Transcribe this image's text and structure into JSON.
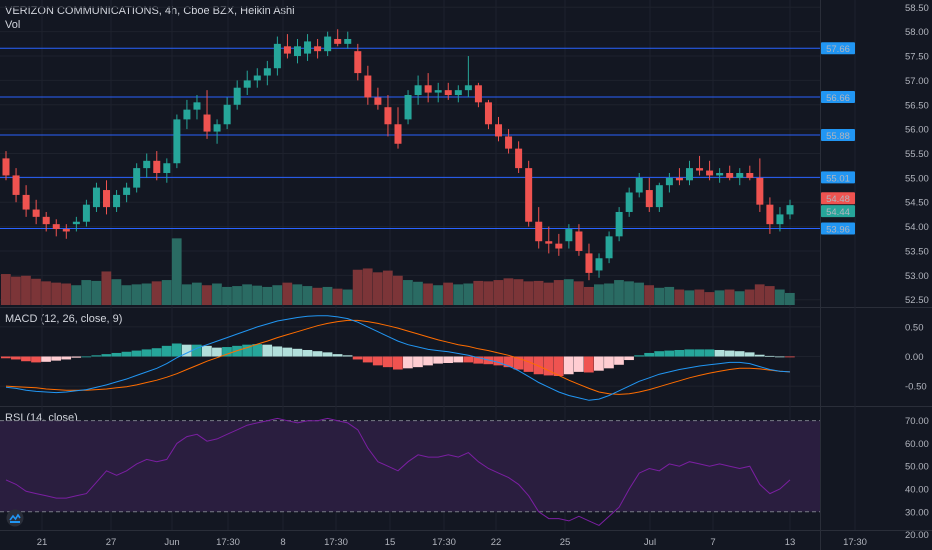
{
  "header": {
    "symbol": "VERIZON COMMUNICATIONS",
    "interval": "4h",
    "exchange": "Cboe BZX",
    "chart_style": "Heikin Ashi",
    "volume_label": "Vol"
  },
  "indicators": {
    "macd_label": "MACD (12, 26, close, 9)",
    "rsi_label": "RSI (14, close)"
  },
  "colors": {
    "background": "#131722",
    "up": "#26a69a",
    "down": "#ef5350",
    "vol_up": "#2a6b63",
    "vol_down": "#7c3538",
    "level_line": "#2962ff",
    "level_tag": "#2196f3",
    "macd_line": "#2196f3",
    "signal_line": "#ff6d00",
    "rsi_line": "#7b1fa2",
    "rsi_band": "#2a1e3f"
  },
  "chart_data": [
    {
      "type": "candlestick",
      "title": "VERIZON COMMUNICATIONS, 4h, Cboe BZX, Heikin Ashi",
      "ylim": [
        52.35,
        58.65
      ],
      "y_ticks": [
        "58.50",
        "58.00",
        "57.50",
        "57.00",
        "56.50",
        "56.00",
        "55.50",
        "55.00",
        "54.50",
        "54.00",
        "53.50",
        "53.00",
        "52.50"
      ],
      "x_ticks": [
        "21",
        "27",
        "Jun",
        "17:30",
        "8",
        "17:30",
        "15",
        "17:30",
        "22",
        "25",
        "Jul",
        "7",
        "13",
        "17:30"
      ],
      "horizontal_levels": [
        57.66,
        56.66,
        55.88,
        55.01,
        53.96
      ],
      "price_tags": [
        {
          "value": 57.66,
          "label": "57.66",
          "color": "#2196f3"
        },
        {
          "value": 56.66,
          "label": "56.66",
          "color": "#2196f3"
        },
        {
          "value": 55.88,
          "label": "55.88",
          "color": "#2196f3"
        },
        {
          "value": 55.01,
          "label": "55.01",
          "color": "#2196f3"
        },
        {
          "value": 54.48,
          "label": "54.48",
          "color": "#ef5350"
        },
        {
          "value": 54.44,
          "label": "54.44",
          "color": "#26a69a"
        },
        {
          "value": 53.96,
          "label": "53.96",
          "color": "#2196f3"
        }
      ],
      "candles": [
        [
          55.4,
          55.55,
          54.95,
          55.05
        ],
        [
          55.05,
          55.2,
          54.5,
          54.65
        ],
        [
          54.65,
          54.85,
          54.2,
          54.35
        ],
        [
          54.35,
          54.55,
          54.05,
          54.2
        ],
        [
          54.2,
          54.3,
          53.9,
          54.05
        ],
        [
          54.05,
          54.15,
          53.8,
          53.95
        ],
        [
          53.95,
          54.05,
          53.75,
          53.9
        ],
        [
          54.05,
          54.2,
          53.9,
          54.1
        ],
        [
          54.1,
          54.55,
          54.0,
          54.45
        ],
        [
          54.4,
          54.9,
          54.3,
          54.8
        ],
        [
          54.75,
          54.95,
          54.25,
          54.4
        ],
        [
          54.4,
          54.75,
          54.3,
          54.65
        ],
        [
          54.65,
          54.9,
          54.5,
          54.8
        ],
        [
          54.8,
          55.3,
          54.7,
          55.2
        ],
        [
          55.2,
          55.5,
          55.0,
          55.35
        ],
        [
          55.35,
          55.55,
          54.95,
          55.1
        ],
        [
          55.1,
          55.4,
          54.9,
          55.3
        ],
        [
          55.3,
          56.3,
          55.2,
          56.2
        ],
        [
          56.2,
          56.6,
          56.0,
          56.4
        ],
        [
          56.4,
          56.7,
          56.2,
          56.55
        ],
        [
          56.3,
          56.8,
          55.8,
          55.95
        ],
        [
          55.95,
          56.2,
          55.7,
          56.1
        ],
        [
          56.1,
          56.65,
          56.0,
          56.5
        ],
        [
          56.5,
          57.0,
          56.4,
          56.85
        ],
        [
          56.85,
          57.2,
          56.7,
          57.0
        ],
        [
          57.0,
          57.25,
          56.85,
          57.1
        ],
        [
          57.1,
          57.4,
          56.9,
          57.25
        ],
        [
          57.25,
          57.9,
          57.1,
          57.75
        ],
        [
          57.7,
          57.95,
          57.45,
          57.55
        ],
        [
          57.5,
          57.85,
          57.35,
          57.7
        ],
        [
          57.55,
          57.95,
          57.4,
          57.8
        ],
        [
          57.7,
          57.85,
          57.45,
          57.6
        ],
        [
          57.6,
          58.0,
          57.5,
          57.9
        ],
        [
          57.85,
          58.05,
          57.7,
          57.75
        ],
        [
          57.75,
          58.0,
          57.65,
          57.85
        ],
        [
          57.6,
          57.75,
          57.0,
          57.15
        ],
        [
          57.1,
          57.3,
          56.5,
          56.65
        ],
        [
          56.65,
          56.85,
          56.4,
          56.5
        ],
        [
          56.45,
          56.7,
          55.85,
          56.1
        ],
        [
          56.1,
          56.45,
          55.6,
          55.7
        ],
        [
          56.2,
          56.8,
          56.1,
          56.7
        ],
        [
          56.7,
          57.1,
          56.5,
          56.9
        ],
        [
          56.9,
          57.15,
          56.55,
          56.75
        ],
        [
          56.75,
          56.95,
          56.55,
          56.8
        ],
        [
          56.8,
          56.95,
          56.6,
          56.7
        ],
        [
          56.7,
          56.9,
          56.55,
          56.8
        ],
        [
          56.8,
          57.5,
          56.65,
          56.9
        ],
        [
          56.9,
          56.95,
          56.45,
          56.55
        ],
        [
          56.55,
          56.6,
          56.0,
          56.1
        ],
        [
          56.1,
          56.25,
          55.75,
          55.85
        ],
        [
          55.85,
          56.0,
          55.5,
          55.6
        ],
        [
          55.6,
          55.75,
          55.1,
          55.2
        ],
        [
          55.2,
          55.35,
          54.0,
          54.1
        ],
        [
          54.1,
          54.4,
          53.55,
          53.7
        ],
        [
          53.7,
          54.0,
          53.45,
          53.65
        ],
        [
          53.65,
          53.85,
          53.4,
          53.55
        ],
        [
          53.7,
          54.05,
          53.55,
          53.95
        ],
        [
          53.9,
          54.05,
          53.4,
          53.5
        ],
        [
          53.45,
          53.65,
          52.9,
          53.05
        ],
        [
          53.1,
          53.45,
          52.95,
          53.35
        ],
        [
          53.35,
          53.9,
          53.25,
          53.8
        ],
        [
          53.8,
          54.4,
          53.7,
          54.3
        ],
        [
          54.3,
          54.8,
          54.2,
          54.7
        ],
        [
          54.7,
          55.1,
          54.6,
          55.0
        ],
        [
          54.75,
          55.0,
          54.3,
          54.4
        ],
        [
          54.4,
          54.9,
          54.3,
          54.85
        ],
        [
          54.85,
          55.1,
          54.7,
          55.0
        ],
        [
          55.0,
          55.2,
          54.85,
          54.95
        ],
        [
          54.95,
          55.35,
          54.85,
          55.2
        ],
        [
          55.2,
          55.45,
          55.05,
          55.15
        ],
        [
          55.15,
          55.35,
          54.95,
          55.05
        ],
        [
          55.05,
          55.2,
          54.9,
          55.1
        ],
        [
          55.1,
          55.25,
          54.95,
          55.0
        ],
        [
          55.0,
          55.2,
          54.85,
          55.1
        ],
        [
          55.1,
          55.25,
          54.95,
          55.0
        ],
        [
          55.0,
          55.4,
          54.3,
          54.45
        ],
        [
          54.45,
          54.6,
          53.85,
          54.05
        ],
        [
          54.05,
          54.4,
          53.9,
          54.25
        ],
        [
          54.25,
          54.55,
          54.15,
          54.44
        ]
      ],
      "volume_ratio": [
        0.72,
        0.66,
        0.68,
        0.61,
        0.55,
        0.52,
        0.5,
        0.46,
        0.58,
        0.56,
        0.78,
        0.6,
        0.46,
        0.48,
        0.5,
        0.55,
        0.58,
        1.55,
        0.48,
        0.52,
        0.46,
        0.5,
        0.42,
        0.44,
        0.48,
        0.45,
        0.42,
        0.46,
        0.52,
        0.48,
        0.44,
        0.4,
        0.42,
        0.38,
        0.36,
        0.82,
        0.85,
        0.76,
        0.8,
        0.68,
        0.58,
        0.54,
        0.5,
        0.46,
        0.52,
        0.48,
        0.5,
        0.56,
        0.55,
        0.58,
        0.62,
        0.6,
        0.55,
        0.56,
        0.52,
        0.58,
        0.6,
        0.55,
        0.42,
        0.48,
        0.5,
        0.58,
        0.55,
        0.52,
        0.46,
        0.4,
        0.42,
        0.36,
        0.34,
        0.36,
        0.3,
        0.34,
        0.36,
        0.32,
        0.36,
        0.48,
        0.44,
        0.36,
        0.28
      ]
    },
    {
      "type": "histogram+line",
      "title": "MACD (12, 26, close, 9)",
      "ylim": [
        -0.82,
        0.82
      ],
      "y_ticks": [
        "0.50",
        "0.00",
        "-0.50"
      ],
      "histogram": [
        -0.03,
        -0.05,
        -0.08,
        -0.1,
        -0.09,
        -0.07,
        -0.05,
        -0.02,
        0.0,
        0.02,
        0.04,
        0.06,
        0.08,
        0.1,
        0.12,
        0.14,
        0.18,
        0.22,
        0.2,
        0.2,
        0.18,
        0.15,
        0.16,
        0.18,
        0.2,
        0.21,
        0.2,
        0.17,
        0.15,
        0.13,
        0.11,
        0.09,
        0.07,
        0.04,
        0.02,
        -0.05,
        -0.1,
        -0.15,
        -0.18,
        -0.22,
        -0.2,
        -0.18,
        -0.15,
        -0.12,
        -0.11,
        -0.1,
        -0.1,
        -0.12,
        -0.13,
        -0.15,
        -0.18,
        -0.22,
        -0.26,
        -0.3,
        -0.32,
        -0.33,
        -0.3,
        -0.26,
        -0.27,
        -0.24,
        -0.2,
        -0.14,
        -0.06,
        0.02,
        0.06,
        0.09,
        0.1,
        0.11,
        0.12,
        0.12,
        0.12,
        0.11,
        0.1,
        0.09,
        0.07,
        0.03,
        0.01,
        0.0,
        -0.01
      ],
      "macd": [
        -0.52,
        -0.54,
        -0.57,
        -0.59,
        -0.6,
        -0.61,
        -0.6,
        -0.58,
        -0.56,
        -0.52,
        -0.48,
        -0.43,
        -0.38,
        -0.32,
        -0.26,
        -0.2,
        -0.12,
        -0.02,
        0.06,
        0.14,
        0.2,
        0.26,
        0.32,
        0.38,
        0.44,
        0.5,
        0.55,
        0.6,
        0.63,
        0.66,
        0.68,
        0.69,
        0.69,
        0.67,
        0.64,
        0.58,
        0.5,
        0.42,
        0.34,
        0.26,
        0.2,
        0.16,
        0.12,
        0.1,
        0.08,
        0.05,
        0.02,
        -0.02,
        -0.06,
        -0.1,
        -0.16,
        -0.24,
        -0.34,
        -0.44,
        -0.52,
        -0.6,
        -0.66,
        -0.7,
        -0.74,
        -0.72,
        -0.66,
        -0.58,
        -0.5,
        -0.42,
        -0.36,
        -0.3,
        -0.26,
        -0.22,
        -0.19,
        -0.16,
        -0.14,
        -0.12,
        -0.1,
        -0.1,
        -0.12,
        -0.17,
        -0.22,
        -0.25,
        -0.26
      ],
      "signal": [
        -0.5,
        -0.51,
        -0.52,
        -0.53,
        -0.55,
        -0.56,
        -0.57,
        -0.57,
        -0.57,
        -0.56,
        -0.55,
        -0.53,
        -0.51,
        -0.48,
        -0.44,
        -0.4,
        -0.35,
        -0.29,
        -0.22,
        -0.15,
        -0.08,
        -0.02,
        0.04,
        0.1,
        0.15,
        0.21,
        0.26,
        0.32,
        0.37,
        0.42,
        0.47,
        0.52,
        0.56,
        0.59,
        0.61,
        0.61,
        0.59,
        0.56,
        0.52,
        0.48,
        0.43,
        0.38,
        0.33,
        0.28,
        0.24,
        0.2,
        0.17,
        0.13,
        0.1,
        0.06,
        0.02,
        -0.03,
        -0.09,
        -0.16,
        -0.24,
        -0.32,
        -0.4,
        -0.47,
        -0.54,
        -0.6,
        -0.63,
        -0.64,
        -0.63,
        -0.6,
        -0.56,
        -0.51,
        -0.46,
        -0.41,
        -0.36,
        -0.32,
        -0.28,
        -0.25,
        -0.22,
        -0.2,
        -0.2,
        -0.21,
        -0.23,
        -0.25,
        -0.26
      ]
    },
    {
      "type": "line",
      "title": "RSI (14, close)",
      "ylim": [
        22,
        76
      ],
      "y_ticks": [
        "70.00",
        "60.00",
        "50.00",
        "40.00",
        "30.00",
        "20.00"
      ],
      "band": [
        30,
        70
      ],
      "values": [
        44,
        42,
        39,
        38,
        37,
        36,
        36,
        37,
        38,
        43,
        48,
        46,
        48,
        51,
        53,
        52,
        53,
        60,
        63,
        64,
        61,
        62,
        64,
        66,
        68,
        69,
        70,
        71,
        70,
        69,
        70,
        70,
        71,
        70,
        69,
        66,
        58,
        52,
        50,
        48,
        52,
        55,
        54,
        54,
        55,
        54,
        56,
        52,
        49,
        47,
        45,
        42,
        37,
        30,
        27,
        27,
        26,
        28,
        26,
        24,
        28,
        32,
        40,
        47,
        49,
        48,
        51,
        50,
        52,
        51,
        50,
        51,
        50,
        49,
        50,
        42,
        38,
        40,
        44
      ]
    }
  ]
}
